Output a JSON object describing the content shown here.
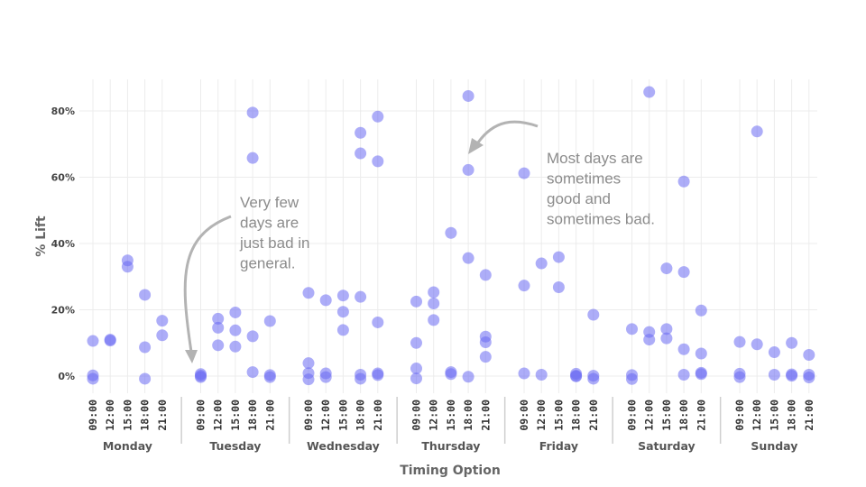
{
  "chart_data": {
    "type": "scatter",
    "ylabel": "% Lift",
    "xlabel": "Timing Option",
    "ylim": [
      -5,
      90
    ],
    "y_ticks": [
      0,
      20,
      40,
      60,
      80
    ],
    "y_tick_labels": [
      "0%",
      "20%",
      "40%",
      "60%",
      "80%"
    ],
    "grid": true,
    "times": [
      "09:00",
      "12:00",
      "15:00",
      "18:00",
      "21:00"
    ],
    "groups": [
      {
        "day": "Monday",
        "points": [
          {
            "time": "09:00",
            "values": [
              10.6,
              0.2,
              -0.8
            ]
          },
          {
            "time": "12:00",
            "values": [
              11.0,
              10.7
            ]
          },
          {
            "time": "15:00",
            "values": [
              34.9,
              33.0
            ]
          },
          {
            "time": "18:00",
            "values": [
              24.5,
              8.7,
              -0.8
            ]
          },
          {
            "time": "21:00",
            "values": [
              16.7,
              12.3
            ]
          }
        ]
      },
      {
        "day": "Tuesday",
        "points": [
          {
            "time": "09:00",
            "values": [
              0.6,
              0.1,
              -0.3
            ]
          },
          {
            "time": "12:00",
            "values": [
              17.3,
              14.6,
              9.3
            ]
          },
          {
            "time": "15:00",
            "values": [
              19.2,
              13.8,
              8.9
            ]
          },
          {
            "time": "18:00",
            "values": [
              79.5,
              65.8,
              12.0,
              1.2
            ]
          },
          {
            "time": "21:00",
            "values": [
              16.6,
              0.3,
              -0.3
            ]
          }
        ]
      },
      {
        "day": "Wednesday",
        "points": [
          {
            "time": "09:00",
            "values": [
              25.1,
              3.9,
              0.9,
              -1.0
            ]
          },
          {
            "time": "12:00",
            "values": [
              22.9,
              0.8,
              -0.3
            ]
          },
          {
            "time": "15:00",
            "values": [
              24.3,
              19.4,
              13.9
            ]
          },
          {
            "time": "18:00",
            "values": [
              73.4,
              67.2,
              23.9,
              0.4,
              -0.8
            ]
          },
          {
            "time": "21:00",
            "values": [
              78.3,
              64.8,
              16.2,
              0.8,
              0.3
            ]
          }
        ]
      },
      {
        "day": "Thursday",
        "points": [
          {
            "time": "09:00",
            "values": [
              22.5,
              10.0,
              2.3,
              -0.7
            ]
          },
          {
            "time": "12:00",
            "values": [
              25.3,
              21.9,
              16.9
            ]
          },
          {
            "time": "15:00",
            "values": [
              43.2,
              1.2,
              0.6
            ]
          },
          {
            "time": "18:00",
            "values": [
              84.5,
              62.2,
              35.6,
              -0.2
            ]
          },
          {
            "time": "21:00",
            "values": [
              30.5,
              11.9,
              10.2,
              5.8
            ]
          }
        ]
      },
      {
        "day": "Friday",
        "points": [
          {
            "time": "09:00",
            "values": [
              61.2,
              27.3,
              0.8
            ]
          },
          {
            "time": "12:00",
            "values": [
              34.0,
              0.4
            ]
          },
          {
            "time": "15:00",
            "values": [
              35.9,
              26.8
            ]
          },
          {
            "time": "18:00",
            "values": [
              0.7,
              0.1,
              -0.1
            ]
          },
          {
            "time": "21:00",
            "values": [
              18.5,
              0.1,
              -0.8
            ]
          }
        ]
      },
      {
        "day": "Saturday",
        "points": [
          {
            "time": "09:00",
            "values": [
              14.2,
              0.3,
              -0.9
            ]
          },
          {
            "time": "12:00",
            "values": [
              85.7,
              13.3,
              11.0
            ]
          },
          {
            "time": "15:00",
            "values": [
              32.5,
              14.2,
              11.4
            ]
          },
          {
            "time": "18:00",
            "values": [
              58.7,
              31.4,
              8.1,
              0.4
            ]
          },
          {
            "time": "21:00",
            "values": [
              19.8,
              6.8,
              1.0,
              0.6
            ]
          }
        ]
      },
      {
        "day": "Sunday",
        "points": [
          {
            "time": "09:00",
            "values": [
              10.3,
              0.7,
              -0.3
            ]
          },
          {
            "time": "12:00",
            "values": [
              73.8,
              9.6
            ]
          },
          {
            "time": "15:00",
            "values": [
              7.2,
              0.4
            ]
          },
          {
            "time": "18:00",
            "values": [
              10.0,
              0.5,
              0.1
            ]
          },
          {
            "time": "21:00",
            "values": [
              6.4,
              0.4,
              -0.4
            ]
          }
        ]
      }
    ],
    "annotations": [
      {
        "text": [
          "Very few",
          "days are",
          "just bad in",
          "general."
        ],
        "points_to": {
          "day": "Tuesday",
          "time": "09:00",
          "value": 0
        }
      },
      {
        "text": [
          "Most days are",
          "sometimes",
          "good and",
          "sometimes bad."
        ],
        "points_to": {
          "day": "Thursday",
          "time": "18:00",
          "value": 66
        }
      }
    ]
  }
}
